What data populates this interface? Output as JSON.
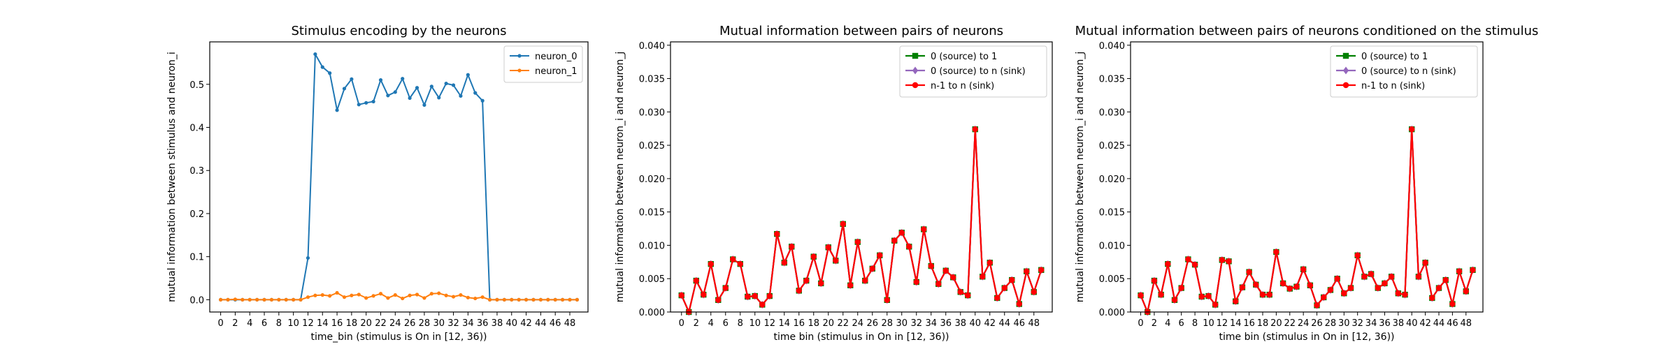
{
  "chart_data": [
    {
      "type": "line",
      "title": "Stimulus encoding by the neurons",
      "xlabel": "time_bin (stimulus is On in [12, 36))",
      "ylabel": "mutual information between stimulus and neuron_i",
      "xlim": [
        -1.5,
        50.5
      ],
      "ylim": [
        -0.0285,
        0.5985
      ],
      "xticks": [
        0,
        2,
        4,
        6,
        8,
        10,
        12,
        14,
        16,
        18,
        20,
        22,
        24,
        26,
        28,
        30,
        32,
        34,
        36,
        38,
        40,
        42,
        44,
        46,
        48
      ],
      "yticks": [
        0.0,
        0.1,
        0.2,
        0.3,
        0.4,
        0.5
      ],
      "ytick_labels": [
        "0.0",
        "0.1",
        "0.2",
        "0.3",
        "0.4",
        "0.5"
      ],
      "legend": "top-right",
      "grid": false,
      "x": [
        0,
        1,
        2,
        3,
        4,
        5,
        6,
        7,
        8,
        9,
        10,
        11,
        12,
        13,
        14,
        15,
        16,
        17,
        18,
        19,
        20,
        21,
        22,
        23,
        24,
        25,
        26,
        27,
        28,
        29,
        30,
        31,
        32,
        33,
        34,
        35,
        36,
        37,
        38,
        39,
        40,
        41,
        42,
        43,
        44,
        45,
        46,
        47,
        48,
        49
      ],
      "series": [
        {
          "name": "neuron_0",
          "color": "#1f77b4",
          "marker": "dot",
          "values": [
            0.0,
            0.0,
            0.0,
            0.0,
            0.0,
            0.0,
            0.0,
            0.0,
            0.0,
            0.0,
            0.0,
            0.0,
            0.097,
            0.57,
            0.54,
            0.526,
            0.44,
            0.49,
            0.512,
            0.453,
            0.457,
            0.46,
            0.51,
            0.474,
            0.482,
            0.513,
            0.468,
            0.492,
            0.452,
            0.495,
            0.469,
            0.502,
            0.498,
            0.473,
            0.522,
            0.48,
            0.462,
            0.0,
            0.0,
            0.0,
            0.0,
            0.0,
            0.0,
            0.0,
            0.0,
            0.0,
            0.0,
            0.0,
            0.0,
            0.0
          ]
        },
        {
          "name": "neuron_1",
          "color": "#ff7f0e",
          "marker": "dot",
          "values": [
            0.0,
            0.0,
            0.001,
            0.0,
            0.0,
            0.0,
            0.0,
            0.0,
            0.0,
            0.0,
            0.0,
            0.0,
            0.006,
            0.01,
            0.011,
            0.009,
            0.016,
            0.006,
            0.01,
            0.012,
            0.004,
            0.009,
            0.014,
            0.004,
            0.011,
            0.003,
            0.01,
            0.012,
            0.004,
            0.014,
            0.015,
            0.01,
            0.007,
            0.011,
            0.005,
            0.003,
            0.006,
            0.0,
            0.0,
            0.0,
            0.0,
            0.0,
            0.0,
            0.0,
            0.0,
            0.0,
            0.0,
            0.0,
            0.0,
            0.0
          ]
        }
      ]
    },
    {
      "type": "line",
      "title": "Mutual information between pairs of neurons",
      "xlabel": "time bin (stimulus in On in [12, 36))",
      "ylabel": "mutual information between neuron_i and neuron_j",
      "xlim": [
        -1.5,
        50.5
      ],
      "ylim": [
        0.0,
        0.0405
      ],
      "xticks": [
        0,
        2,
        4,
        6,
        8,
        10,
        12,
        14,
        16,
        18,
        20,
        22,
        24,
        26,
        28,
        30,
        32,
        34,
        36,
        38,
        40,
        42,
        44,
        46,
        48
      ],
      "yticks": [
        0.0,
        0.005,
        0.01,
        0.015,
        0.02,
        0.025,
        0.03,
        0.035,
        0.04
      ],
      "ytick_labels": [
        "0.000",
        "0.005",
        "0.010",
        "0.015",
        "0.020",
        "0.025",
        "0.030",
        "0.035",
        "0.040"
      ],
      "legend": "top-right",
      "grid": false,
      "x": [
        0,
        1,
        2,
        3,
        4,
        5,
        6,
        7,
        8,
        9,
        10,
        11,
        12,
        13,
        14,
        15,
        16,
        17,
        18,
        19,
        20,
        21,
        22,
        23,
        24,
        25,
        26,
        27,
        28,
        29,
        30,
        31,
        32,
        33,
        34,
        35,
        36,
        37,
        38,
        39,
        40,
        41,
        42,
        43,
        44,
        45,
        46,
        47,
        48,
        49
      ],
      "series": [
        {
          "name": "0 (source) to 1",
          "color": "#008000",
          "marker": "square",
          "values": [
            0.0025,
            0.0,
            0.0047,
            0.0026,
            0.0072,
            0.0018,
            0.0036,
            0.0079,
            0.0072,
            0.0023,
            0.0024,
            0.0011,
            0.0024,
            0.0117,
            0.0074,
            0.0098,
            0.0032,
            0.0047,
            0.0083,
            0.0043,
            0.0097,
            0.0077,
            0.0132,
            0.004,
            0.0105,
            0.0047,
            0.0065,
            0.0085,
            0.0018,
            0.0107,
            0.0119,
            0.0098,
            0.0045,
            0.0124,
            0.0069,
            0.0042,
            0.0062,
            0.0052,
            0.003,
            0.0025,
            0.0274,
            0.0053,
            0.0074,
            0.0021,
            0.0036,
            0.0048,
            0.0012,
            0.0061,
            0.003,
            0.0063
          ]
        },
        {
          "name": "0 (source) to n (sink)",
          "color": "#9467bd",
          "marker": "diamond",
          "values": [
            0.0025,
            0.0,
            0.0047,
            0.0026,
            0.0072,
            0.0018,
            0.0036,
            0.0079,
            0.0072,
            0.0023,
            0.0024,
            0.0011,
            0.0024,
            0.0117,
            0.0074,
            0.0098,
            0.0032,
            0.0047,
            0.0083,
            0.0043,
            0.0097,
            0.0077,
            0.0132,
            0.004,
            0.0105,
            0.0047,
            0.0065,
            0.0085,
            0.0018,
            0.0107,
            0.0119,
            0.0098,
            0.0045,
            0.0124,
            0.0069,
            0.0042,
            0.0062,
            0.0052,
            0.003,
            0.0025,
            0.0274,
            0.0053,
            0.0074,
            0.0021,
            0.0036,
            0.0048,
            0.0012,
            0.0061,
            0.003,
            0.0063
          ]
        },
        {
          "name": "n-1 to n (sink)",
          "color": "#ff0000",
          "marker": "circle",
          "values": [
            0.0025,
            0.0,
            0.0047,
            0.0026,
            0.0072,
            0.0018,
            0.0036,
            0.0079,
            0.0072,
            0.0023,
            0.0024,
            0.0011,
            0.0024,
            0.0117,
            0.0074,
            0.0098,
            0.0032,
            0.0047,
            0.0083,
            0.0043,
            0.0097,
            0.0077,
            0.0132,
            0.004,
            0.0105,
            0.0047,
            0.0065,
            0.0085,
            0.0018,
            0.0107,
            0.0119,
            0.0098,
            0.0045,
            0.0124,
            0.0069,
            0.0042,
            0.0062,
            0.0052,
            0.003,
            0.0025,
            0.0274,
            0.0053,
            0.0074,
            0.0021,
            0.0036,
            0.0048,
            0.0012,
            0.0061,
            0.003,
            0.0063
          ]
        }
      ]
    },
    {
      "type": "line",
      "title": "Mutual information between pairs of neurons conditioned on the stimulus",
      "xlabel": "time bin (stimulus in On in [12, 36))",
      "ylabel": "mutual information between neuron_i and neuron_j",
      "xlim": [
        -1.5,
        50.5
      ],
      "ylim": [
        0.0,
        0.0405
      ],
      "xticks": [
        0,
        2,
        4,
        6,
        8,
        10,
        12,
        14,
        16,
        18,
        20,
        22,
        24,
        26,
        28,
        30,
        32,
        34,
        36,
        38,
        40,
        42,
        44,
        46,
        48
      ],
      "yticks": [
        0.0,
        0.005,
        0.01,
        0.015,
        0.02,
        0.025,
        0.03,
        0.035,
        0.04
      ],
      "ytick_labels": [
        "0.000",
        "0.005",
        "0.010",
        "0.015",
        "0.020",
        "0.025",
        "0.030",
        "0.035",
        "0.040"
      ],
      "legend": "top-right",
      "grid": false,
      "x": [
        0,
        1,
        2,
        3,
        4,
        5,
        6,
        7,
        8,
        9,
        10,
        11,
        12,
        13,
        14,
        15,
        16,
        17,
        18,
        19,
        20,
        21,
        22,
        23,
        24,
        25,
        26,
        27,
        28,
        29,
        30,
        31,
        32,
        33,
        34,
        35,
        36,
        37,
        38,
        39,
        40,
        41,
        42,
        43,
        44,
        45,
        46,
        47,
        48,
        49
      ],
      "series": [
        {
          "name": "0 (source) to 1",
          "color": "#008000",
          "marker": "square",
          "values": [
            0.0025,
            0.0,
            0.0047,
            0.0026,
            0.0072,
            0.0018,
            0.0036,
            0.0079,
            0.0071,
            0.0023,
            0.0024,
            0.0011,
            0.0078,
            0.0076,
            0.0016,
            0.0037,
            0.006,
            0.0041,
            0.0026,
            0.0026,
            0.009,
            0.0043,
            0.0035,
            0.0038,
            0.0064,
            0.004,
            0.001,
            0.0022,
            0.0033,
            0.005,
            0.0028,
            0.0036,
            0.0085,
            0.0053,
            0.0057,
            0.0036,
            0.0043,
            0.0053,
            0.0028,
            0.0026,
            0.0274,
            0.0053,
            0.0074,
            0.0021,
            0.0036,
            0.0048,
            0.0012,
            0.0061,
            0.0031,
            0.0063
          ]
        },
        {
          "name": "0 (source) to n (sink)",
          "color": "#9467bd",
          "marker": "diamond",
          "values": [
            0.0025,
            0.0,
            0.0047,
            0.0026,
            0.0072,
            0.0018,
            0.0036,
            0.0079,
            0.0071,
            0.0023,
            0.0024,
            0.0011,
            0.0078,
            0.0076,
            0.0016,
            0.0037,
            0.006,
            0.0041,
            0.0026,
            0.0026,
            0.009,
            0.0043,
            0.0035,
            0.0038,
            0.0064,
            0.004,
            0.001,
            0.0022,
            0.0033,
            0.005,
            0.0028,
            0.0036,
            0.0085,
            0.0053,
            0.0057,
            0.0036,
            0.0043,
            0.0053,
            0.0028,
            0.0026,
            0.0274,
            0.0053,
            0.0074,
            0.0021,
            0.0036,
            0.0048,
            0.0012,
            0.0061,
            0.0031,
            0.0063
          ]
        },
        {
          "name": "n-1 to n (sink)",
          "color": "#ff0000",
          "marker": "circle",
          "values": [
            0.0025,
            0.0,
            0.0047,
            0.0026,
            0.0072,
            0.0018,
            0.0036,
            0.0079,
            0.0071,
            0.0023,
            0.0024,
            0.0011,
            0.0078,
            0.0076,
            0.0016,
            0.0037,
            0.006,
            0.0041,
            0.0026,
            0.0026,
            0.009,
            0.0043,
            0.0035,
            0.0038,
            0.0064,
            0.004,
            0.001,
            0.0022,
            0.0033,
            0.005,
            0.0028,
            0.0036,
            0.0085,
            0.0053,
            0.0057,
            0.0036,
            0.0043,
            0.0053,
            0.0028,
            0.0026,
            0.0274,
            0.0053,
            0.0074,
            0.0021,
            0.0036,
            0.0048,
            0.0012,
            0.0061,
            0.0031,
            0.0063
          ]
        }
      ]
    }
  ]
}
